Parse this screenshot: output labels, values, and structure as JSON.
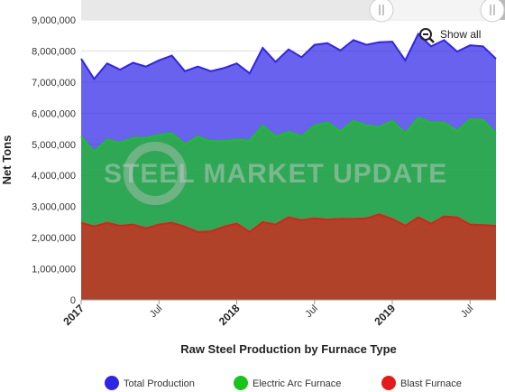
{
  "watermark": {
    "text": "STEEL MARKET UPDATE"
  },
  "navigator": {
    "show_all_label": "Show all"
  },
  "colors": {
    "total": "#2f25e8",
    "eaf": "#18c41a",
    "bf": "#e51b1b",
    "grid": "#dddddd",
    "navigator_mask": "#b9b9b9"
  },
  "chart_data": {
    "type": "area",
    "title": "",
    "xlabel": "Raw Steel Production by Furnace Type",
    "ylabel": "Net Tons",
    "ylim": [
      0,
      9000000
    ],
    "y_ticks": [
      0,
      1000000,
      2000000,
      3000000,
      4000000,
      5000000,
      6000000,
      7000000,
      8000000,
      9000000
    ],
    "y_tick_labels": [
      "0",
      "1,000,000",
      "2,000,000",
      "3,000,000",
      "4,000,000",
      "5,000,000",
      "6,000,000",
      "7,000,000",
      "8,000,000",
      "9,000,000"
    ],
    "x_tick_labels": [
      {
        "label": "2017",
        "index": 0,
        "bold": true
      },
      {
        "label": "Jul",
        "index": 6,
        "bold": false
      },
      {
        "label": "2018",
        "index": 12,
        "bold": true
      },
      {
        "label": "Jul",
        "index": 18,
        "bold": false
      },
      {
        "label": "2019",
        "index": 24,
        "bold": true
      },
      {
        "label": "Jul",
        "index": 30,
        "bold": false
      }
    ],
    "x": [
      "2017-01",
      "2017-02",
      "2017-03",
      "2017-04",
      "2017-05",
      "2017-06",
      "2017-07",
      "2017-08",
      "2017-09",
      "2017-10",
      "2017-11",
      "2017-12",
      "2018-01",
      "2018-02",
      "2018-03",
      "2018-04",
      "2018-05",
      "2018-06",
      "2018-07",
      "2018-08",
      "2018-09",
      "2018-10",
      "2018-11",
      "2018-12",
      "2019-01",
      "2019-02",
      "2019-03",
      "2019-04",
      "2019-05",
      "2019-06",
      "2019-07",
      "2019-08",
      "2019-09"
    ],
    "legend_position": "bottom",
    "series": [
      {
        "name": "Total Production",
        "values": [
          7750000,
          7100000,
          7600000,
          7400000,
          7620000,
          7500000,
          7700000,
          7850000,
          7350000,
          7500000,
          7350000,
          7450000,
          7600000,
          7280000,
          8100000,
          7650000,
          8050000,
          7800000,
          8200000,
          8250000,
          8020000,
          8350000,
          8200000,
          8280000,
          8300000,
          7700000,
          8550000,
          8150000,
          8350000,
          7980000,
          8180000,
          8150000,
          7750000
        ]
      },
      {
        "name": "Electric Arc Furnace",
        "values": [
          5250000,
          4750000,
          5150000,
          5050000,
          5200000,
          5200000,
          5300000,
          5350000,
          5000000,
          5250000,
          5100000,
          5100000,
          5150000,
          5120000,
          5600000,
          5250000,
          5400000,
          5250000,
          5600000,
          5700000,
          5420000,
          5750000,
          5600000,
          5550000,
          5750000,
          5350000,
          5850000,
          5700000,
          5700000,
          5430000,
          5800000,
          5780000,
          5350000
        ]
      },
      {
        "name": "Blast Furnace",
        "values": [
          2480000,
          2360000,
          2480000,
          2380000,
          2420000,
          2300000,
          2420000,
          2480000,
          2350000,
          2180000,
          2200000,
          2350000,
          2450000,
          2180000,
          2500000,
          2420000,
          2650000,
          2560000,
          2620000,
          2580000,
          2600000,
          2600000,
          2620000,
          2750000,
          2600000,
          2380000,
          2650000,
          2450000,
          2680000,
          2650000,
          2420000,
          2400000,
          2380000
        ]
      }
    ]
  }
}
